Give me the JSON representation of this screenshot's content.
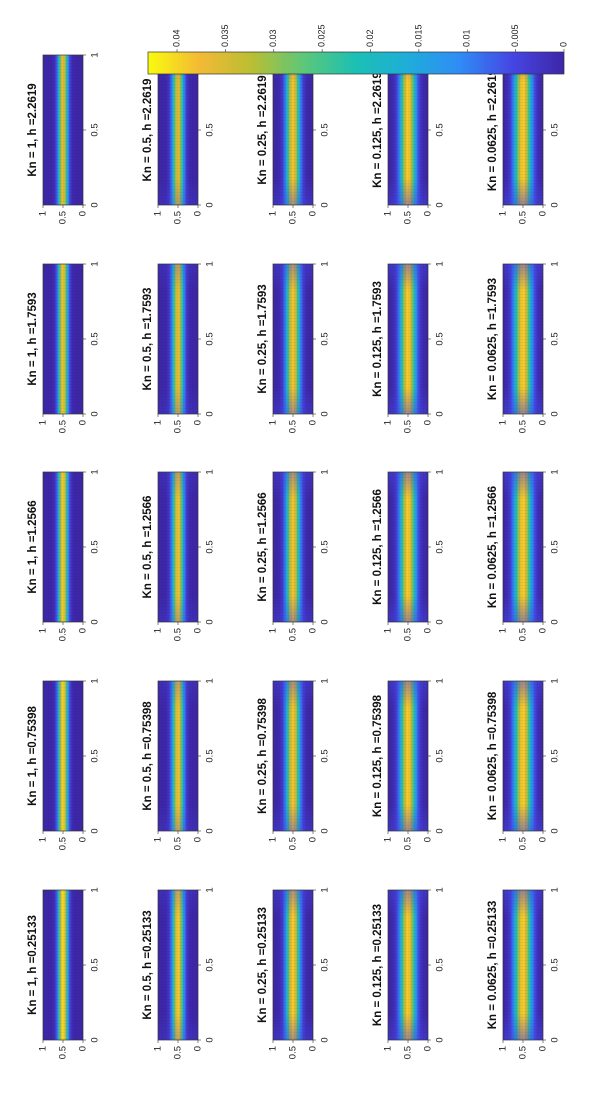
{
  "chart_data": {
    "type": "heatmap",
    "xlim": [
      0,
      1
    ],
    "ylim": [
      0,
      1
    ],
    "x_ticks": [
      "0",
      "0.5",
      "1"
    ],
    "y_ticks": [
      "0",
      "0.5",
      "1"
    ],
    "color_range": [
      0,
      0.043
    ],
    "colorbar_ticks": [
      "0",
      "0.005",
      "0.01",
      "0.015",
      "0.02",
      "0.025",
      "0.03",
      "0.035",
      "0.04"
    ],
    "colorbar_values": [
      0,
      0.005,
      0.01,
      0.015,
      0.02,
      0.025,
      0.03,
      0.035,
      0.04
    ],
    "colormap": [
      "#3e26a8",
      "#4546e3",
      "#2f8cf6",
      "#1fadda",
      "#1bc0b4",
      "#5cc77a",
      "#b9be33",
      "#f3b935",
      "#f9fb0e"
    ],
    "kn_values": [
      1,
      0.5,
      0.25,
      0.125,
      0.0625
    ],
    "h_values": [
      0.25133,
      0.75398,
      1.2566,
      1.7593,
      2.2619
    ],
    "panels": [
      {
        "title": "Kn = 1, h =0.25133",
        "kn": 1,
        "h": 0.25133,
        "peak": 0.042,
        "band_width": 0.12
      },
      {
        "title": "Kn = 1, h =0.75398",
        "kn": 1,
        "h": 0.75398,
        "peak": 0.041,
        "band_width": 0.12
      },
      {
        "title": "Kn = 1, h =1.2566",
        "kn": 1,
        "h": 1.2566,
        "peak": 0.04,
        "band_width": 0.12
      },
      {
        "title": "Kn = 1, h =1.7593",
        "kn": 1,
        "h": 1.7593,
        "peak": 0.039,
        "band_width": 0.12
      },
      {
        "title": "Kn = 1, h =2.2619",
        "kn": 1,
        "h": 2.2619,
        "peak": 0.038,
        "band_width": 0.12
      },
      {
        "title": "Kn = 0.5, h =0.25133",
        "kn": 0.5,
        "h": 0.25133,
        "peak": 0.04,
        "band_width": 0.14
      },
      {
        "title": "Kn = 0.5, h =0.75398",
        "kn": 0.5,
        "h": 0.75398,
        "peak": 0.039,
        "band_width": 0.14
      },
      {
        "title": "Kn = 0.5, h =1.2566",
        "kn": 0.5,
        "h": 1.2566,
        "peak": 0.039,
        "band_width": 0.14
      },
      {
        "title": "Kn = 0.5, h =1.7593",
        "kn": 0.5,
        "h": 1.7593,
        "peak": 0.038,
        "band_width": 0.14
      },
      {
        "title": "Kn = 0.5, h =2.2619",
        "kn": 0.5,
        "h": 2.2619,
        "peak": 0.037,
        "band_width": 0.14
      },
      {
        "title": "Kn = 0.25, h =0.25133",
        "kn": 0.25,
        "h": 0.25133,
        "peak": 0.04,
        "band_width": 0.17
      },
      {
        "title": "Kn = 0.25, h =0.75398",
        "kn": 0.25,
        "h": 0.75398,
        "peak": 0.039,
        "band_width": 0.17
      },
      {
        "title": "Kn = 0.25, h =1.2566",
        "kn": 0.25,
        "h": 1.2566,
        "peak": 0.039,
        "band_width": 0.17
      },
      {
        "title": "Kn = 0.25, h =1.7593",
        "kn": 0.25,
        "h": 1.7593,
        "peak": 0.039,
        "band_width": 0.17
      },
      {
        "title": "Kn = 0.25, h =2.2619",
        "kn": 0.25,
        "h": 2.2619,
        "peak": 0.039,
        "band_width": 0.17
      },
      {
        "title": "Kn = 0.125, h =0.25133",
        "kn": 0.125,
        "h": 0.25133,
        "peak": 0.04,
        "band_width": 0.19
      },
      {
        "title": "Kn = 0.125, h =0.75398",
        "kn": 0.125,
        "h": 0.75398,
        "peak": 0.04,
        "band_width": 0.19
      },
      {
        "title": "Kn = 0.125, h =1.2566",
        "kn": 0.125,
        "h": 1.2566,
        "peak": 0.04,
        "band_width": 0.19
      },
      {
        "title": "Kn = 0.125, h =1.7593",
        "kn": 0.125,
        "h": 1.7593,
        "peak": 0.04,
        "band_width": 0.19
      },
      {
        "title": "Kn = 0.125, h =2.2619",
        "kn": 0.125,
        "h": 2.2619,
        "peak": 0.04,
        "band_width": 0.19
      },
      {
        "title": "Kn = 0.0625, h =0.25133",
        "kn": 0.0625,
        "h": 0.25133,
        "peak": 0.04,
        "band_width": 0.21
      },
      {
        "title": "Kn = 0.0625, h =0.75398",
        "kn": 0.0625,
        "h": 0.75398,
        "peak": 0.04,
        "band_width": 0.21
      },
      {
        "title": "Kn = 0.0625, h =1.2566",
        "kn": 0.0625,
        "h": 1.2566,
        "peak": 0.04,
        "band_width": 0.21
      },
      {
        "title": "Kn = 0.0625, h =1.7593",
        "kn": 0.0625,
        "h": 1.7593,
        "peak": 0.04,
        "band_width": 0.21
      },
      {
        "title": "Kn = 0.0625, h =2.2619",
        "kn": 0.0625,
        "h": 2.2619,
        "peak": 0.04,
        "band_width": 0.21
      }
    ]
  }
}
